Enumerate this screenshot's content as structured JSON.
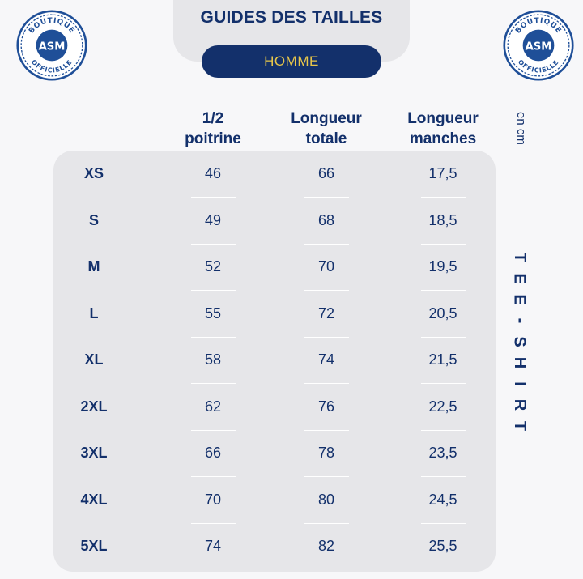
{
  "header": {
    "title": "GUIDES DES TAILLES",
    "subtitle": "HOMME"
  },
  "logo": {
    "text_top": "BOUTIQUE",
    "text_bottom": "OFFICIELLE",
    "monogram": "ASM",
    "colors": {
      "primary": "#1f4f98",
      "background": "#ffffff"
    }
  },
  "table": {
    "columns": [
      {
        "label_line1": "1/2",
        "label_line2": "poitrine"
      },
      {
        "label_line1": "Longueur",
        "label_line2": "totale"
      },
      {
        "label_line1": "Longueur",
        "label_line2": "manches"
      }
    ],
    "unit": "en cm",
    "rows": [
      {
        "size": "XS",
        "values": [
          "46",
          "66",
          "17,5"
        ]
      },
      {
        "size": "S",
        "values": [
          "49",
          "68",
          "18,5"
        ]
      },
      {
        "size": "M",
        "values": [
          "52",
          "70",
          "19,5"
        ]
      },
      {
        "size": "L",
        "values": [
          "55",
          "72",
          "20,5"
        ]
      },
      {
        "size": "XL",
        "values": [
          "58",
          "74",
          "21,5"
        ]
      },
      {
        "size": "2XL",
        "values": [
          "62",
          "76",
          "22,5"
        ]
      },
      {
        "size": "3XL",
        "values": [
          "66",
          "78",
          "23,5"
        ]
      },
      {
        "size": "4XL",
        "values": [
          "70",
          "80",
          "24,5"
        ]
      },
      {
        "size": "5XL",
        "values": [
          "74",
          "82",
          "25,5"
        ]
      }
    ]
  },
  "side_label": "TEE-SHIRT",
  "colors": {
    "navy": "#13306b",
    "gold": "#e8c64a",
    "panel": "#e6e6e9",
    "page": "#f7f7f9"
  }
}
